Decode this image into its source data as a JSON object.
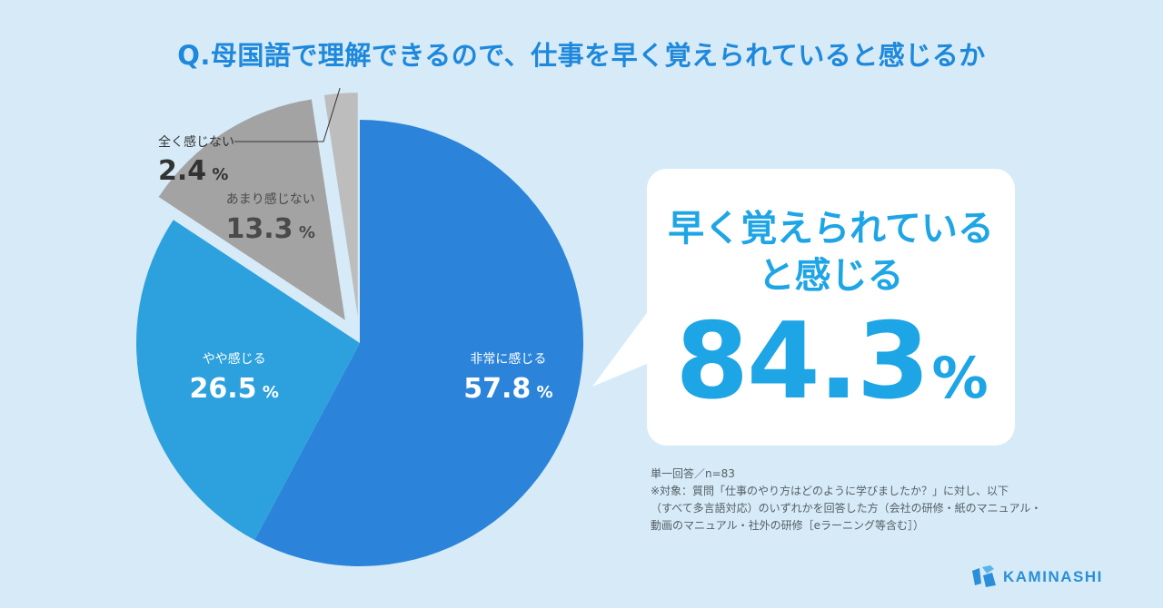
{
  "chart_data": {
    "type": "pie",
    "title": "Q.母国語で理解できるので、仕事を早く覚えられていると感じるか",
    "unit": "%",
    "slices": [
      {
        "label": "非常に感じる",
        "value": 57.8,
        "color": "#2b84d9"
      },
      {
        "label": "やや感じる",
        "value": 26.5,
        "color": "#2da1de"
      },
      {
        "label": "あまり感じない",
        "value": 13.3,
        "color": "#a3a3a3"
      },
      {
        "label": "全く感じない",
        "value": 2.4,
        "color": "#bdbdbd"
      }
    ]
  },
  "callout": {
    "line1": "早く覚えられている",
    "line2": "と感じる",
    "value": "84.3",
    "unit": "%"
  },
  "notes": [
    "単一回答／n=83",
    "※対象：質問「仕事のやり方はどのように学びましたか？」に対し、以下",
    "（すべて多言語対応）のいずれかを回答した方（会社の研修・紙のマニュアル・",
    "動画のマニュアル・社外の研修［eラーニング等含む］）"
  ],
  "logo": {
    "text": "KAMINASHI",
    "color": "#2a8fd8"
  }
}
